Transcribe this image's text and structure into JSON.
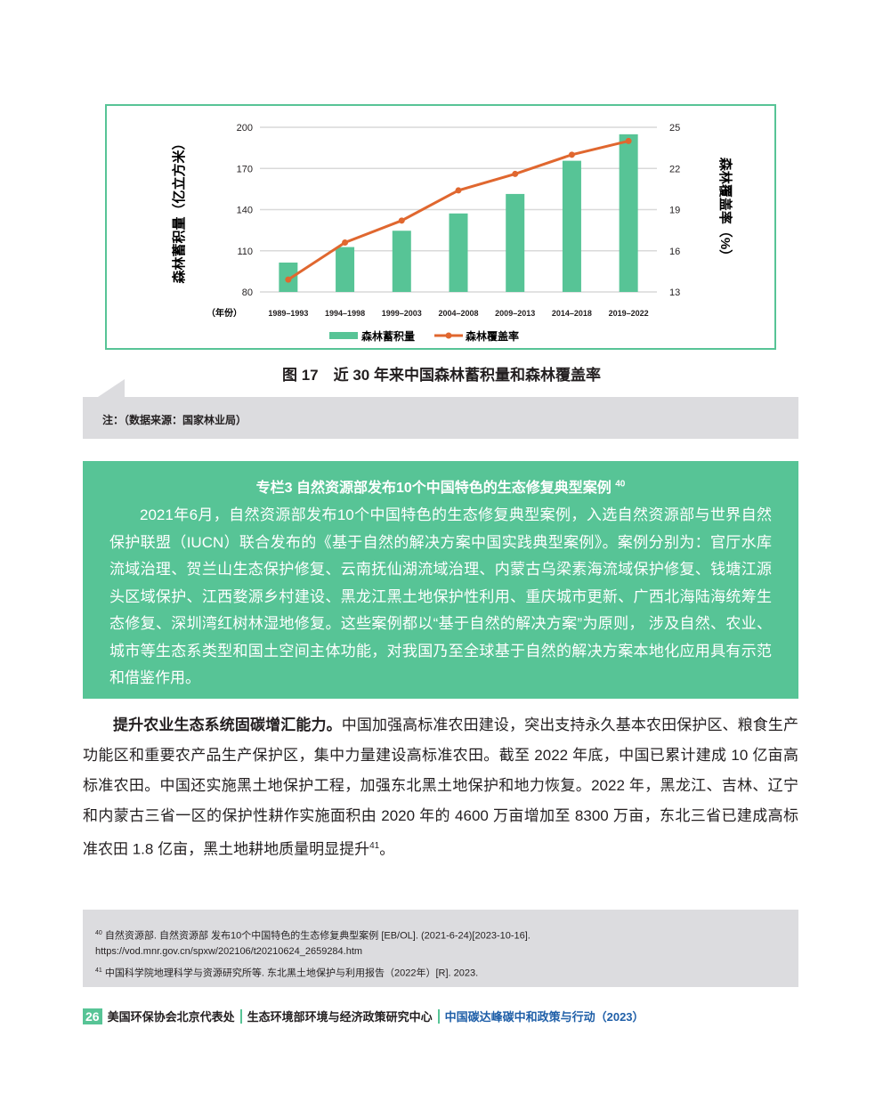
{
  "chart_data": {
    "type": "bar+line",
    "categories": [
      "1989–1993",
      "1994–1998",
      "1999–2003",
      "2004–2008",
      "2009–2013",
      "2014–2018",
      "2019–2022"
    ],
    "x_prefix": "（年份）",
    "ylabel": "森林蓄积量（亿立方米）",
    "y2label": "森林覆盖率（%）",
    "ylim": [
      80,
      200
    ],
    "yticks": [
      80,
      110,
      140,
      170,
      200
    ],
    "y2lim": [
      13,
      25
    ],
    "y2ticks": [
      13,
      16,
      19,
      22,
      25
    ],
    "grid": true,
    "legend": "bottom",
    "series": [
      {
        "name": "森林蓄积量",
        "type": "bar",
        "axis": "left",
        "color": "#57c496",
        "values": [
          101.4,
          112.7,
          124.6,
          137.2,
          151.4,
          175.6,
          194.9
        ]
      },
      {
        "name": "森林覆盖率",
        "type": "line",
        "axis": "right",
        "color": "#e0672f",
        "values": [
          13.9,
          16.6,
          18.2,
          20.4,
          21.6,
          23.0,
          24.0
        ]
      }
    ]
  },
  "caption": "图 17　近 30 年来中国森林蓄积量和森林覆盖率",
  "note": "注：（数据来源：国家林业局）",
  "box": {
    "title": "专栏3 自然资源部发布10个中国特色的生态修复典型案例",
    "title_ref": "40",
    "text": "2021年6月，自然资源部发布10个中国特色的生态修复典型案例，入选自然资源部与世界自然保护联盟（IUCN）联合发布的《基于自然的解决方案中国实践典型案例》。案例分别为：官厅水库流域治理、贺兰山生态保护修复、云南抚仙湖流域治理、内蒙古乌梁素海流域保护修复、钱塘江源头区域保护、江西婺源乡村建设、黑龙江黑土地保护性利用、重庆城市更新、广西北海陆海统筹生态修复、深圳湾红树林湿地修复。这些案例都以“基于自然的解决方案”为原则， 涉及自然、农业、城市等生态系类型和国土空间主体功能，对我国乃至全球基于自然的解决方案本地化应用具有示范和借鉴作用。"
  },
  "body": {
    "lead": "提升农业生态系统固碳增汇能力。",
    "text": "中国加强高标准农田建设，突出支持永久基本农田保护区、粮食生产功能区和重要农产品生产保护区，集中力量建设高标准农田。截至 2022 年底，中国已累计建成 10 亿亩高标准农田。中国还实施黑土地保护工程，加强东北黑土地保护和地力恢复。2022 年，黑龙江、吉林、辽宁和内蒙古三省一区的保护性耕作实施面积由 2020 年的 4600 万亩增加至 8300 万亩，东北三省已建成高标准农田 1.8 亿亩，黑土地耕地质量明显提升",
    "ref": "41",
    "end": "。"
  },
  "footnotes": [
    {
      "num": "40",
      "text": "自然资源部. 自然资源部 发布10个中国特色的生态修复典型案例 [EB/OL]. (2021-6-24)[2023-10-16]. https://vod.mnr.gov.cn/spxw/202106/t20210624_2659284.htm"
    },
    {
      "num": "41",
      "text": "中国科学院地理科学与资源研究所等. 东北黑土地保护与利用报告（2022年）[R]. 2023."
    }
  ],
  "footer": {
    "page": "26",
    "org1": "美国环保协会北京代表处",
    "org2": "生态环境部环境与经济政策研究中心",
    "title": "中国碳达峰碳中和政策与行动（2023）"
  }
}
